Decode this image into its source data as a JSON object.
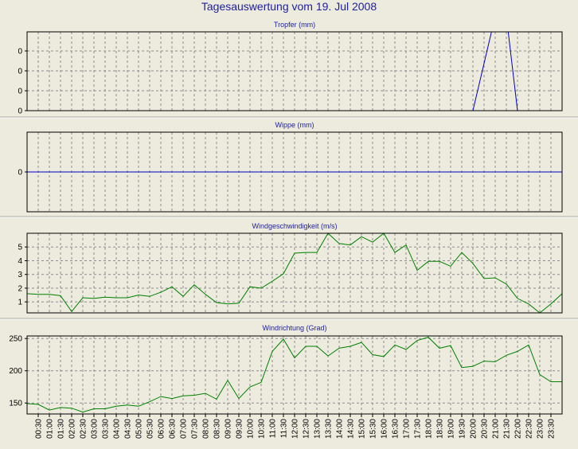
{
  "title": "Tagesauswertung vom 19. Jul 2008",
  "times": [
    "00:30",
    "01:00",
    "01:30",
    "02:00",
    "02:30",
    "03:00",
    "03:30",
    "04:00",
    "04:30",
    "05:00",
    "05:30",
    "06:00",
    "06:30",
    "07:00",
    "07:30",
    "08:00",
    "08:30",
    "09:00",
    "09:30",
    "10:00",
    "10:30",
    "11:00",
    "11:30",
    "12:00",
    "12:30",
    "13:00",
    "13:30",
    "14:00",
    "14:30",
    "15:00",
    "15:30",
    "16:00",
    "16:30",
    "17:00",
    "17:30",
    "18:00",
    "18:30",
    "19:00",
    "19:30",
    "20:00",
    "20:30",
    "21:00",
    "21:30",
    "22:00",
    "22:30",
    "23:00",
    "23:30"
  ],
  "colors": {
    "blue": "#0000c8",
    "green": "#008000"
  },
  "chart_data": [
    {
      "type": "line",
      "title": "Tropfer (mm)",
      "yticks": [
        "0",
        "0",
        "0",
        "0"
      ],
      "ylim": [
        0,
        1
      ],
      "x": [
        "00:00",
        "00:30",
        "01:00",
        "01:30",
        "02:00",
        "02:30",
        "03:00",
        "03:30",
        "04:00",
        "04:30",
        "05:00",
        "05:30",
        "06:00",
        "06:30",
        "07:00",
        "07:30",
        "08:00",
        "08:30",
        "09:00",
        "09:30",
        "10:00",
        "10:30",
        "11:00",
        "11:30",
        "12:00",
        "12:30",
        "13:00",
        "13:30",
        "14:00",
        "14:30",
        "15:00",
        "15:30",
        "16:00",
        "16:30",
        "17:00",
        "17:30",
        "18:00",
        "18:30",
        "19:00",
        "19:30",
        "20:00",
        "20:30",
        "21:00",
        "21:30",
        "22:00",
        "22:30",
        "23:00",
        "23:30",
        "24:00"
      ],
      "values": [
        0,
        0,
        0,
        0,
        0,
        0,
        0,
        0,
        0,
        0,
        0,
        0,
        0,
        0,
        0,
        0,
        0,
        0,
        0,
        0,
        0,
        0,
        0,
        0,
        0,
        0,
        0,
        0,
        0,
        0,
        0,
        0,
        0,
        0,
        0,
        0,
        0,
        0,
        0,
        0,
        0,
        0.6,
        1.2,
        1.2,
        0,
        0,
        0,
        0,
        0
      ],
      "color": "#0000c8"
    },
    {
      "type": "line",
      "title": "Wippe (mm)",
      "yticks": [
        "0"
      ],
      "ylim": [
        -1,
        1
      ],
      "x": [
        "00:00",
        "24:00"
      ],
      "values": [
        0,
        0
      ],
      "color": "#0000c8"
    },
    {
      "type": "line",
      "title": "Windgeschwindigkeit (m/s)",
      "yticks": [
        "1",
        "2",
        "3",
        "4",
        "5"
      ],
      "ylim": [
        0.2,
        6
      ],
      "x": [
        "00:00",
        "00:30",
        "01:00",
        "01:30",
        "02:00",
        "02:30",
        "03:00",
        "03:30",
        "04:00",
        "04:30",
        "05:00",
        "05:30",
        "06:00",
        "06:30",
        "07:00",
        "07:30",
        "08:00",
        "08:30",
        "09:00",
        "09:30",
        "10:00",
        "10:30",
        "11:00",
        "11:30",
        "12:00",
        "12:30",
        "13:00",
        "13:30",
        "14:00",
        "14:30",
        "15:00",
        "15:30",
        "16:00",
        "16:30",
        "17:00",
        "17:30",
        "18:00",
        "18:30",
        "19:00",
        "19:30",
        "20:00",
        "20:30",
        "21:00",
        "21:30",
        "22:00",
        "22:30",
        "23:00",
        "23:30",
        "24:00"
      ],
      "values": [
        1.6,
        1.55,
        1.55,
        1.45,
        0.3,
        1.3,
        1.25,
        1.35,
        1.3,
        1.3,
        1.5,
        1.4,
        1.7,
        2.1,
        1.4,
        2.25,
        1.55,
        0.95,
        0.85,
        0.9,
        2.1,
        2.0,
        2.5,
        3.05,
        4.55,
        4.6,
        4.6,
        6.0,
        5.25,
        5.15,
        5.75,
        5.35,
        6.0,
        4.6,
        5.15,
        3.3,
        3.95,
        3.95,
        3.6,
        4.6,
        3.8,
        2.7,
        2.75,
        2.3,
        1.25,
        0.85,
        0.2,
        0.85,
        1.6
      ],
      "color": "#008000"
    },
    {
      "type": "line",
      "title": "Windrichtung (Grad)",
      "yticks": [
        "150",
        "200",
        "250"
      ],
      "ylim": [
        133,
        254
      ],
      "x": [
        "00:00",
        "00:30",
        "01:00",
        "01:30",
        "02:00",
        "02:30",
        "03:00",
        "03:30",
        "04:00",
        "04:30",
        "05:00",
        "05:30",
        "06:00",
        "06:30",
        "07:00",
        "07:30",
        "08:00",
        "08:30",
        "09:00",
        "09:30",
        "10:00",
        "10:30",
        "11:00",
        "11:30",
        "12:00",
        "12:30",
        "13:00",
        "13:30",
        "14:00",
        "14:30",
        "15:00",
        "15:30",
        "16:00",
        "16:30",
        "17:00",
        "17:30",
        "18:00",
        "18:30",
        "19:00",
        "19:30",
        "20:00",
        "20:30",
        "21:00",
        "21:30",
        "22:00",
        "22:30",
        "23:00",
        "23:30",
        "24:00"
      ],
      "values": [
        149,
        148,
        139,
        143,
        142,
        136,
        141,
        141,
        145,
        147,
        145,
        152,
        160,
        157,
        161,
        162,
        165,
        156,
        185,
        157,
        175,
        182,
        230,
        249,
        220,
        238,
        238,
        223,
        235,
        238,
        244,
        225,
        222,
        240,
        233,
        247,
        252,
        235,
        239,
        205,
        207,
        215,
        214,
        224,
        230,
        240,
        194,
        183,
        183
      ],
      "color": "#008000"
    }
  ]
}
